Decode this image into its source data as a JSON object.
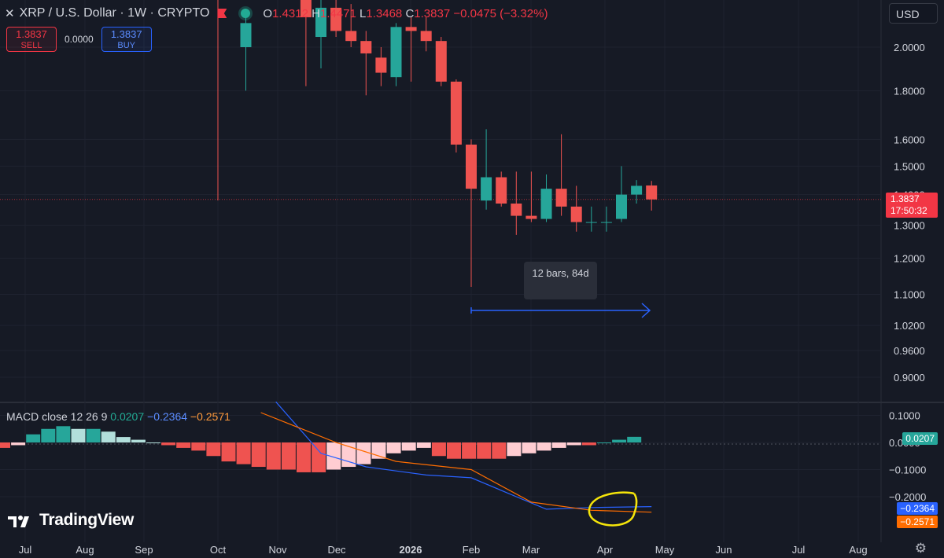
{
  "header": {
    "close_icon": "x-icon",
    "symbol": "XRP / U.S. Dollar · 1W · CRYPTO",
    "flag_icon": "flag-icon",
    "status_icon": "market-status-dot-icon",
    "ohlc": {
      "o_label": "O",
      "o": "1.4312",
      "h_label": "H",
      "h": "1.4471",
      "l_label": "L",
      "l": "1.3468",
      "c_label": "C",
      "c": "1.3837",
      "change": "−0.0475 (−3.32%)"
    }
  },
  "trade": {
    "sell_price": "1.3837",
    "sell_label": "SELL",
    "spread": "0.0000",
    "buy_price": "1.3837",
    "buy_label": "BUY"
  },
  "currency": "USD",
  "price_tag": {
    "price": "1.3837",
    "countdown": "17:50:32"
  },
  "measure": {
    "label": "12 bars, 84d"
  },
  "macd": {
    "legend_name": "MACD close 12 26 9",
    "hist": "0.0207",
    "macd": "−0.2364",
    "signal": "−0.2571",
    "tag_hist": "0.0207",
    "tag_macd": "−0.2364",
    "tag_signal": "−0.2571"
  },
  "logo": {
    "text": "TradingView",
    "icon": "tradingview-logo-icon"
  },
  "settings_icon": "gear-icon",
  "colors": {
    "up": "#26a69a",
    "down": "#ef5350",
    "macd_line": "#2962ff",
    "signal_line": "#ff6d00",
    "hist_up_strong": "#26a69a",
    "hist_up_weak": "#b2dfdb",
    "hist_down_strong": "#ef5350",
    "hist_down_weak": "#ffcdd2",
    "annotation": "#f5e50a"
  },
  "chart_data": [
    {
      "type": "candlestick",
      "title": "XRP / U.S. Dollar · 1W · CRYPTO",
      "scale": "log",
      "x_ticks": [
        "Jul",
        "Aug",
        "Sep",
        "Oct",
        "Nov",
        "Dec",
        "2026",
        "Feb",
        "Mar",
        "Apr",
        "May",
        "Jun",
        "Jul",
        "Aug"
      ],
      "y_ticks": [
        "2.0000",
        "1.8000",
        "1.6000",
        "1.5000",
        "1.4000",
        "1.3000",
        "1.2000",
        "1.1000",
        "1.0200",
        "0.9600",
        "0.9000"
      ],
      "ylim": [
        0.86,
        2.3
      ],
      "series": [
        {
          "candles": [
            {
              "week": "2025-10-13",
              "o": 2.0,
              "h": 2.15,
              "l": 1.8,
              "c": 2.12
            },
            {
              "week": "2025-11-10",
              "o": 2.3,
              "h": 2.35,
              "l": 1.82,
              "c": 2.15
            },
            {
              "week": "2025-11-17",
              "o": 2.05,
              "h": 2.3,
              "l": 1.9,
              "c": 2.2
            },
            {
              "week": "2025-11-24",
              "o": 2.2,
              "h": 2.3,
              "l": 2.05,
              "c": 2.08
            },
            {
              "week": "2025-12-01",
              "o": 2.08,
              "h": 2.22,
              "l": 2.0,
              "c": 2.03
            },
            {
              "week": "2025-12-08",
              "o": 2.03,
              "h": 2.08,
              "l": 1.78,
              "c": 1.97
            },
            {
              "week": "2025-12-15",
              "o": 1.95,
              "h": 2.0,
              "l": 1.82,
              "c": 1.88
            },
            {
              "week": "2025-12-22",
              "o": 1.86,
              "h": 2.12,
              "l": 1.82,
              "c": 2.1
            },
            {
              "week": "2025-12-29",
              "o": 2.1,
              "h": 2.15,
              "l": 1.84,
              "c": 2.08
            },
            {
              "week": "2026-01-05",
              "o": 2.08,
              "h": 2.15,
              "l": 1.98,
              "c": 2.03
            },
            {
              "week": "2026-01-12",
              "o": 2.03,
              "h": 2.05,
              "l": 1.82,
              "c": 1.84
            },
            {
              "week": "2026-01-19",
              "o": 1.84,
              "h": 1.85,
              "l": 1.55,
              "c": 1.58
            },
            {
              "week": "2026-01-26",
              "o": 1.58,
              "h": 1.6,
              "l": 1.12,
              "c": 1.42
            },
            {
              "week": "2026-02-02",
              "o": 1.38,
              "h": 1.64,
              "l": 1.35,
              "c": 1.46
            },
            {
              "week": "2026-02-09",
              "o": 1.46,
              "h": 1.48,
              "l": 1.36,
              "c": 1.37
            },
            {
              "week": "2026-02-16",
              "o": 1.37,
              "h": 1.48,
              "l": 1.27,
              "c": 1.33
            },
            {
              "week": "2026-02-23",
              "o": 1.33,
              "h": 1.48,
              "l": 1.31,
              "c": 1.32
            },
            {
              "week": "2026-03-02",
              "o": 1.32,
              "h": 1.47,
              "l": 1.31,
              "c": 1.42
            },
            {
              "week": "2026-03-09",
              "o": 1.42,
              "h": 1.62,
              "l": 1.33,
              "c": 1.36
            },
            {
              "week": "2026-03-16",
              "o": 1.36,
              "h": 1.43,
              "l": 1.28,
              "c": 1.31
            },
            {
              "week": "2026-03-23",
              "o": 1.31,
              "h": 1.36,
              "l": 1.28,
              "c": 1.31
            },
            {
              "week": "2026-03-30",
              "o": 1.31,
              "h": 1.36,
              "l": 1.28,
              "c": 1.31
            },
            {
              "week": "2026-04-06",
              "o": 1.32,
              "h": 1.5,
              "l": 1.31,
              "c": 1.4
            },
            {
              "week": "2026-04-13",
              "o": 1.4,
              "h": 1.45,
              "l": 1.37,
              "c": 1.43
            },
            {
              "week": "2026-04-20",
              "o": 1.4312,
              "h": 1.4471,
              "l": 1.3468,
              "c": 1.3837
            }
          ]
        }
      ]
    },
    {
      "type": "bar",
      "title": "MACD close 12 26 9",
      "y_ticks": [
        "0.1000",
        "0.0000",
        "−0.1000",
        "−0.2000"
      ],
      "ylim": [
        -0.35,
        0.14
      ],
      "series": [
        {
          "name": "",
          "histogram": [
            -0.02,
            -0.01,
            0.03,
            0.05,
            0.06,
            0.05,
            0.05,
            0.04,
            0.02,
            0.01,
            0.0,
            -0.01,
            -0.02,
            -0.03,
            -0.05,
            -0.07,
            -0.08,
            -0.09,
            -0.1,
            -0.1,
            -0.11,
            -0.11,
            -0.1,
            -0.09,
            -0.08,
            -0.06,
            -0.04,
            -0.03,
            -0.02,
            -0.05,
            -0.06,
            -0.06,
            -0.06,
            -0.06,
            -0.05,
            -0.04,
            -0.03,
            -0.02,
            -0.01,
            -0.01,
            0.0,
            0.01,
            0.0207
          ]
        },
        {
          "name": "",
          "macd": [
            {
              "week": "2025-10-27",
              "v": 0.15
            },
            {
              "week": "2025-11-17",
              "v": -0.04
            },
            {
              "week": "2025-12-08",
              "v": -0.09
            },
            {
              "week": "2026-01-05",
              "v": -0.12
            },
            {
              "week": "2026-01-26",
              "v": -0.13
            },
            {
              "week": "2026-02-16",
              "v": -0.2
            },
            {
              "week": "2026-03-02",
              "v": -0.246
            },
            {
              "week": "2026-03-23",
              "v": -0.24
            },
            {
              "week": "2026-04-20",
              "v": -0.2364
            }
          ],
          "signal": [
            {
              "week": "2025-10-20",
              "v": 0.11
            },
            {
              "week": "2025-11-24",
              "v": 0.0
            },
            {
              "week": "2025-12-22",
              "v": -0.07
            },
            {
              "week": "2026-01-26",
              "v": -0.1
            },
            {
              "week": "2026-02-23",
              "v": -0.22
            },
            {
              "week": "2026-03-23",
              "v": -0.25
            },
            {
              "week": "2026-04-20",
              "v": -0.2571
            }
          ]
        }
      ]
    }
  ]
}
